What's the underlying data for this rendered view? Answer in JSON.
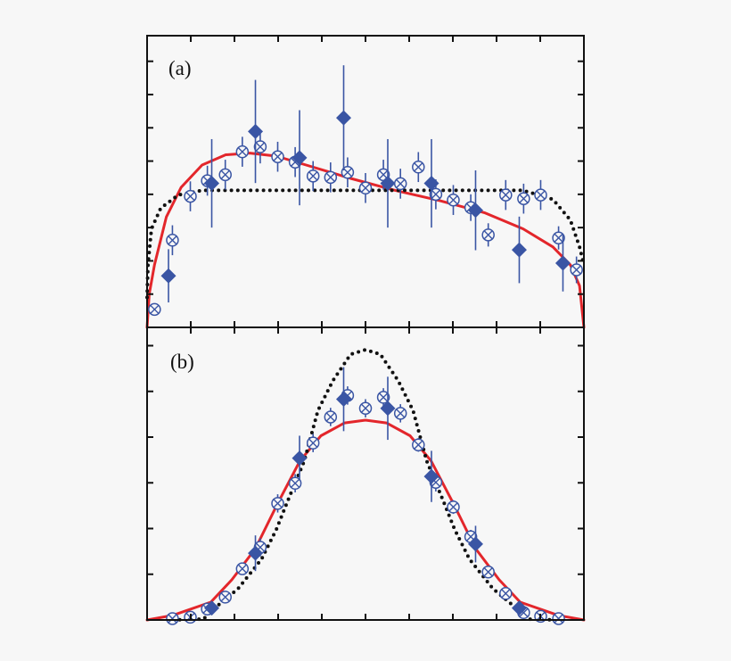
{
  "colors": {
    "data": "#3a55a4",
    "fit": "#e3262b",
    "model": "#111111",
    "frame": "#111111",
    "background": "#f7f7f7"
  },
  "chart_data": [
    {
      "type": "scatter",
      "panel_label": "(a)",
      "title": "",
      "xlabel": "",
      "ylabel": "",
      "xlim": [
        0,
        10
      ],
      "ylim": [
        0,
        8.77
      ],
      "x_ticks": [
        1,
        2,
        3,
        4,
        5,
        6,
        7,
        8,
        9
      ],
      "y_ticks": [
        1,
        2,
        3,
        4,
        5,
        6,
        7,
        8
      ],
      "grid": false,
      "series": [
        {
          "marker": "circle-x",
          "style": "open",
          "x": [
            0.17,
            0.58,
            0.99,
            1.38,
            1.79,
            2.18,
            2.59,
            2.99,
            3.39,
            3.8,
            4.2,
            4.59,
            5.0,
            5.41,
            5.8,
            6.21,
            6.61,
            7.01,
            7.41,
            7.81,
            8.21,
            8.62,
            9.01,
            9.42,
            9.83
          ],
          "y": [
            0.54,
            2.62,
            3.94,
            4.41,
            4.59,
            5.28,
            5.43,
            5.13,
            4.97,
            4.55,
            4.51,
            4.66,
            4.19,
            4.59,
            4.32,
            4.82,
            4.0,
            3.83,
            3.6,
            2.78,
            3.98,
            3.87,
            3.98,
            2.69,
            1.73
          ],
          "err": [
            0,
            0.45,
            0.45,
            0.45,
            0.45,
            0.45,
            0.5,
            0.45,
            0.45,
            0.45,
            0.45,
            0.45,
            0.45,
            0.45,
            0.45,
            0.45,
            0.45,
            0.45,
            0.4,
            0.35,
            0.45,
            0.45,
            0.45,
            0.35,
            0.4
          ]
        },
        {
          "marker": "diamond",
          "style": "filled",
          "x": [
            0.49,
            1.48,
            2.48,
            3.49,
            4.5,
            5.51,
            6.51,
            7.52,
            8.52,
            9.52
          ],
          "y": [
            1.55,
            4.33,
            5.89,
            5.1,
            6.3,
            4.33,
            4.33,
            3.52,
            2.33,
            1.93
          ],
          "err": [
            0.8,
            1.33,
            1.55,
            1.43,
            1.58,
            1.33,
            1.33,
            1.2,
            1.0,
            0.85
          ]
        },
        {
          "line": "solid",
          "color_key": "fit",
          "x": [
            0,
            0.05,
            0.17,
            0.44,
            0.78,
            1.26,
            1.8,
            2.35,
            2.96,
            3.64,
            4.66,
            5.68,
            6.7,
            7.72,
            8.61,
            9.29,
            9.69,
            9.9,
            10
          ],
          "y": [
            0,
            1.0,
            1.88,
            3.32,
            4.21,
            4.88,
            5.19,
            5.24,
            5.15,
            4.88,
            4.48,
            4.12,
            3.81,
            3.45,
            2.96,
            2.42,
            1.88,
            1.25,
            0
          ]
        },
        {
          "line": "dotted",
          "color_key": "model",
          "x": [
            0,
            0.02,
            0.1,
            0.31,
            0.71,
            1.26,
            2,
            3,
            4,
            5,
            6,
            7,
            8,
            8.6,
            9.29,
            9.69,
            9.9,
            10
          ],
          "y": [
            0.9,
            1.88,
            2.96,
            3.58,
            3.98,
            4.12,
            4.12,
            4.12,
            4.12,
            4.12,
            4.12,
            4.12,
            4.12,
            4.12,
            3.85,
            3.23,
            2.42,
            1.88
          ]
        }
      ]
    },
    {
      "type": "scatter",
      "panel_label": "(b)",
      "title": "",
      "xlabel": "",
      "ylabel": "",
      "xlim": [
        0,
        10
      ],
      "ylim": [
        0,
        6.4
      ],
      "x_ticks": [
        1,
        2,
        3,
        4,
        5,
        6,
        7,
        8,
        9
      ],
      "y_ticks": [
        1,
        2,
        3,
        4,
        5,
        6
      ],
      "grid": false,
      "series": [
        {
          "marker": "circle-x",
          "style": "open",
          "x": [
            0.58,
            0.99,
            1.38,
            1.79,
            2.18,
            2.59,
            2.99,
            3.39,
            3.8,
            4.2,
            4.59,
            5.0,
            5.41,
            5.8,
            6.21,
            6.61,
            7.01,
            7.41,
            7.81,
            8.21,
            8.62,
            9.01,
            9.42
          ],
          "y": [
            0.03,
            0.06,
            0.24,
            0.5,
            1.12,
            1.59,
            2.55,
            2.99,
            3.87,
            4.44,
            4.91,
            4.63,
            4.87,
            4.52,
            3.83,
            3.01,
            2.47,
            1.82,
            1.05,
            0.58,
            0.16,
            0.08,
            0.03
          ],
          "err": [
            0,
            0,
            0,
            0,
            0,
            0.2,
            0.2,
            0.2,
            0.2,
            0.2,
            0.2,
            0.2,
            0.2,
            0.2,
            0.15,
            0.2,
            0.15,
            0.15,
            0,
            0,
            0,
            0,
            0
          ]
        },
        {
          "marker": "diamond",
          "style": "filled",
          "x": [
            1.48,
            2.48,
            3.49,
            4.5,
            5.51,
            6.51,
            7.52,
            8.52
          ],
          "y": [
            0.26,
            1.46,
            3.54,
            4.83,
            4.63,
            3.14,
            1.66,
            0.26
          ],
          "err": [
            0,
            0.39,
            0.49,
            0.7,
            0.69,
            0.56,
            0.4,
            0
          ]
        },
        {
          "line": "solid",
          "color_key": "fit",
          "x": [
            0,
            0.58,
            1.46,
            1.94,
            2.48,
            2.99,
            3.5,
            3.98,
            4.52,
            5.0,
            5.48,
            6.02,
            6.5,
            7.01,
            7.52,
            8.06,
            8.54,
            9.42,
            10
          ],
          "y": [
            0,
            0.1,
            0.39,
            0.88,
            1.56,
            2.55,
            3.48,
            4.03,
            4.31,
            4.37,
            4.31,
            4.03,
            3.48,
            2.55,
            1.56,
            0.88,
            0.39,
            0.1,
            0
          ]
        },
        {
          "line": "dotted",
          "color_key": "model",
          "x": [
            0.6,
            1.29,
            1.6,
            2.08,
            2.62,
            2.96,
            3.23,
            3.6,
            3.91,
            4.25,
            4.66,
            5.0,
            5.34,
            5.75,
            6.09,
            6.4,
            6.77,
            7.04,
            7.38,
            7.92,
            8.4,
            8.71,
            9.4
          ],
          "y": [
            0,
            0.02,
            0.3,
            0.68,
            1.33,
            1.98,
            2.63,
            3.48,
            4.58,
            5.23,
            5.81,
            5.91,
            5.81,
            5.23,
            4.58,
            3.48,
            2.63,
            1.98,
            1.33,
            0.68,
            0.3,
            0.02,
            0
          ]
        }
      ]
    }
  ]
}
